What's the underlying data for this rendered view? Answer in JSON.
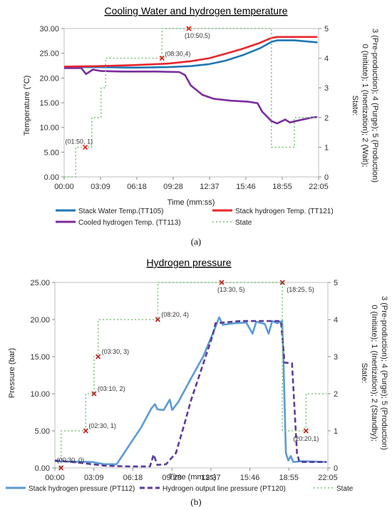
{
  "chart_data": [
    {
      "type": "line",
      "title": "Cooling Water and hydrogen temperature",
      "panel_label": "(a)",
      "xlabel": "Time (mm:ss)",
      "ylabel": "Temperature (°C)",
      "y2label": [
        "State:",
        "0 (Initiate); 1 (Inertization); 2 (Wait);",
        "3 (Pre-production); 4 (Purge); 5 (Production)"
      ],
      "xlim": [
        0,
        22.1
      ],
      "ylim": [
        0,
        30
      ],
      "y2lim": [
        0,
        5
      ],
      "x_tick_labels": [
        "00:00",
        "03:09",
        "06:18",
        "09:28",
        "12:37",
        "15:46",
        "18:55",
        "22:05"
      ],
      "y_tick_labels": [
        "0.00",
        "5.00",
        "10.00",
        "15.00",
        "20.00",
        "25.00",
        "30.00"
      ],
      "y2_tick_labels": [
        "0",
        "1",
        "2",
        "3",
        "4",
        "5"
      ],
      "grid": false,
      "series": [
        {
          "name": "Stack Water Temp.(TT105)",
          "color": "#1f77b4",
          "style": "solid",
          "axis": "left",
          "points": [
            [
              0,
              22.2
            ],
            [
              3,
              22.2
            ],
            [
              6,
              22.1
            ],
            [
              9,
              22.2
            ],
            [
              11,
              22.4
            ],
            [
              12.6,
              22.8
            ],
            [
              14,
              23.5
            ],
            [
              15.5,
              24.6
            ],
            [
              17,
              26
            ],
            [
              18,
              27.3
            ],
            [
              18.5,
              27.6
            ],
            [
              20,
              27.6
            ],
            [
              22,
              27.2
            ]
          ]
        },
        {
          "name": "Stack hydrogen Temp. (TT121)",
          "color": "#e8262b",
          "style": "solid",
          "axis": "left",
          "points": [
            [
              0,
              22.3
            ],
            [
              3,
              22.4
            ],
            [
              6,
              22.6
            ],
            [
              9,
              22.9
            ],
            [
              11,
              23.4
            ],
            [
              12.6,
              24
            ],
            [
              14,
              24.9
            ],
            [
              15.5,
              25.9
            ],
            [
              17,
              27.1
            ],
            [
              18,
              28.1
            ],
            [
              18.5,
              28.3
            ],
            [
              20,
              28.3
            ],
            [
              22,
              28.3
            ]
          ]
        },
        {
          "name": "Cooled hydrogen Temp. (TT113)",
          "color": "#7b2d9e",
          "style": "solid",
          "axis": "left",
          "points": [
            [
              0,
              22
            ],
            [
              1.5,
              22
            ],
            [
              1.9,
              20.8
            ],
            [
              2.5,
              21.7
            ],
            [
              3.2,
              21.4
            ],
            [
              5,
              21.3
            ],
            [
              8,
              21.3
            ],
            [
              10,
              21.2
            ],
            [
              10.5,
              20.6
            ],
            [
              11,
              18.5
            ],
            [
              12,
              16.6
            ],
            [
              13,
              15.8
            ],
            [
              14.5,
              15.4
            ],
            [
              16,
              15.2
            ],
            [
              16.8,
              14.9
            ],
            [
              17.2,
              13.2
            ],
            [
              18,
              11.3
            ],
            [
              18.5,
              10.8
            ],
            [
              19.2,
              11.6
            ],
            [
              19.6,
              11
            ],
            [
              20.5,
              11.5
            ],
            [
              21.5,
              12
            ],
            [
              22,
              12.1
            ]
          ]
        },
        {
          "name": "State",
          "color": "#7dc47a",
          "style": "dotted",
          "axis": "right",
          "points": [
            [
              0,
              0
            ],
            [
              1.0,
              0
            ],
            [
              1.0,
              1
            ],
            [
              2.4,
              1
            ],
            [
              2.4,
              2
            ],
            [
              3.2,
              2
            ],
            [
              3.2,
              3
            ],
            [
              3.6,
              3
            ],
            [
              3.6,
              4
            ],
            [
              8.5,
              4
            ],
            [
              8.5,
              5
            ],
            [
              18.0,
              5
            ],
            [
              18.0,
              1
            ],
            [
              20.0,
              1
            ],
            [
              20.0,
              2
            ],
            [
              22,
              2
            ]
          ]
        }
      ],
      "annotations": [
        {
          "label": "(01:50, 1)",
          "x": 1.83,
          "y2": 1
        },
        {
          "label": "(08:30,4)",
          "x": 8.5,
          "y2": 4
        },
        {
          "label": "(10:50,5)",
          "x": 10.83,
          "y2": 5
        }
      ]
    },
    {
      "type": "line",
      "title": "Hydrogen pressure",
      "panel_label": "(b)",
      "xlabel": "Time (mm:ss)",
      "ylabel": "Pressure (bar)",
      "y2label": [
        "State:",
        "0 (Initiate); 1 (Inertization); 2 (Standby);",
        "3 (Pre-production); 4 (Purge); 5 (Production)"
      ],
      "xlim": [
        0,
        22.1
      ],
      "ylim": [
        0,
        25
      ],
      "y2lim": [
        0,
        5
      ],
      "x_tick_labels": [
        "00:00",
        "03:09",
        "06:18",
        "09:28",
        "12:37",
        "15:46",
        "18:55",
        "22:05"
      ],
      "y_tick_labels": [
        "0.00",
        "5.00",
        "10.00",
        "15.00",
        "20.00",
        "25.00"
      ],
      "y2_tick_labels": [
        "0",
        "1",
        "2",
        "3",
        "4",
        "5"
      ],
      "grid": false,
      "series": [
        {
          "name": "Stack hydrogen pressure (PT112)",
          "color": "#5b9bd5",
          "style": "solid",
          "axis": "left",
          "points": [
            [
              0,
              0.9
            ],
            [
              3,
              0.8
            ],
            [
              4,
              0.5
            ],
            [
              5,
              0.5
            ],
            [
              6,
              3
            ],
            [
              7,
              5.5
            ],
            [
              7.8,
              8
            ],
            [
              8.1,
              8.6
            ],
            [
              8.3,
              7.9
            ],
            [
              8.8,
              7.8
            ],
            [
              9.3,
              9.2
            ],
            [
              9.5,
              7.8
            ],
            [
              10,
              8.9
            ],
            [
              11,
              12
            ],
            [
              12,
              15
            ],
            [
              13,
              19
            ],
            [
              13.3,
              20.3
            ],
            [
              13.6,
              19.3
            ],
            [
              14.5,
              19.5
            ],
            [
              15.5,
              19.6
            ],
            [
              16,
              18.1
            ],
            [
              16.3,
              19.7
            ],
            [
              17,
              19.4
            ],
            [
              17.3,
              18.1
            ],
            [
              17.6,
              19.8
            ],
            [
              18,
              19.5
            ],
            [
              18.4,
              19.8
            ],
            [
              18.5,
              15
            ],
            [
              18.7,
              2
            ],
            [
              18.9,
              1
            ],
            [
              19.1,
              1.6
            ],
            [
              19.3,
              0.8
            ],
            [
              20,
              0.9
            ],
            [
              22,
              0.8
            ]
          ]
        },
        {
          "name": "Hydrogen output line pressure (PT120)",
          "color": "#5a3a9a",
          "style": "dashed",
          "axis": "left",
          "points": [
            [
              0,
              1
            ],
            [
              2,
              0.7
            ],
            [
              4,
              0.3
            ],
            [
              6,
              0.2
            ],
            [
              7.7,
              0.2
            ],
            [
              8,
              1.8
            ],
            [
              8.3,
              0.4
            ],
            [
              9,
              0.5
            ],
            [
              9.8,
              2
            ],
            [
              10.5,
              6
            ],
            [
              11,
              9
            ],
            [
              12,
              14
            ],
            [
              12.8,
              18
            ],
            [
              13,
              19.5
            ],
            [
              15,
              19.8
            ],
            [
              16.5,
              19.8
            ],
            [
              17.5,
              19.8
            ],
            [
              18.3,
              19.8
            ],
            [
              18.6,
              14.2
            ],
            [
              19.2,
              14.1
            ],
            [
              19.6,
              2
            ],
            [
              19.8,
              0.8
            ],
            [
              22,
              0.8
            ]
          ]
        },
        {
          "name": "State",
          "color": "#7dc47a",
          "style": "dotted",
          "axis": "right",
          "points": [
            [
              0,
              0
            ],
            [
              0.5,
              0
            ],
            [
              0.5,
              1
            ],
            [
              2.5,
              1
            ],
            [
              2.5,
              2
            ],
            [
              3.17,
              2
            ],
            [
              3.17,
              3
            ],
            [
              3.5,
              3
            ],
            [
              3.5,
              4
            ],
            [
              8.33,
              4
            ],
            [
              8.33,
              5
            ],
            [
              18.42,
              5
            ],
            [
              18.42,
              1
            ],
            [
              20.33,
              1
            ],
            [
              20.33,
              2
            ],
            [
              22,
              2
            ]
          ]
        }
      ],
      "annotations": [
        {
          "label": "(00:30, 0)",
          "x": 0.5,
          "y2": 0
        },
        {
          "label": "(02:30, 1)",
          "x": 2.5,
          "y2": 1
        },
        {
          "label": "(03:10, 2)",
          "x": 3.17,
          "y2": 2
        },
        {
          "label": "(03:30, 3)",
          "x": 3.5,
          "y2": 3
        },
        {
          "label": "(08:20, 4)",
          "x": 8.33,
          "y2": 4
        },
        {
          "label": "(13:30, 5)",
          "x": 13.5,
          "y2": 5
        },
        {
          "label": "(18:25, 5)",
          "x": 18.42,
          "y2": 5
        },
        {
          "label": "(20:20,1)",
          "x": 20.33,
          "y2": 1
        }
      ]
    }
  ]
}
